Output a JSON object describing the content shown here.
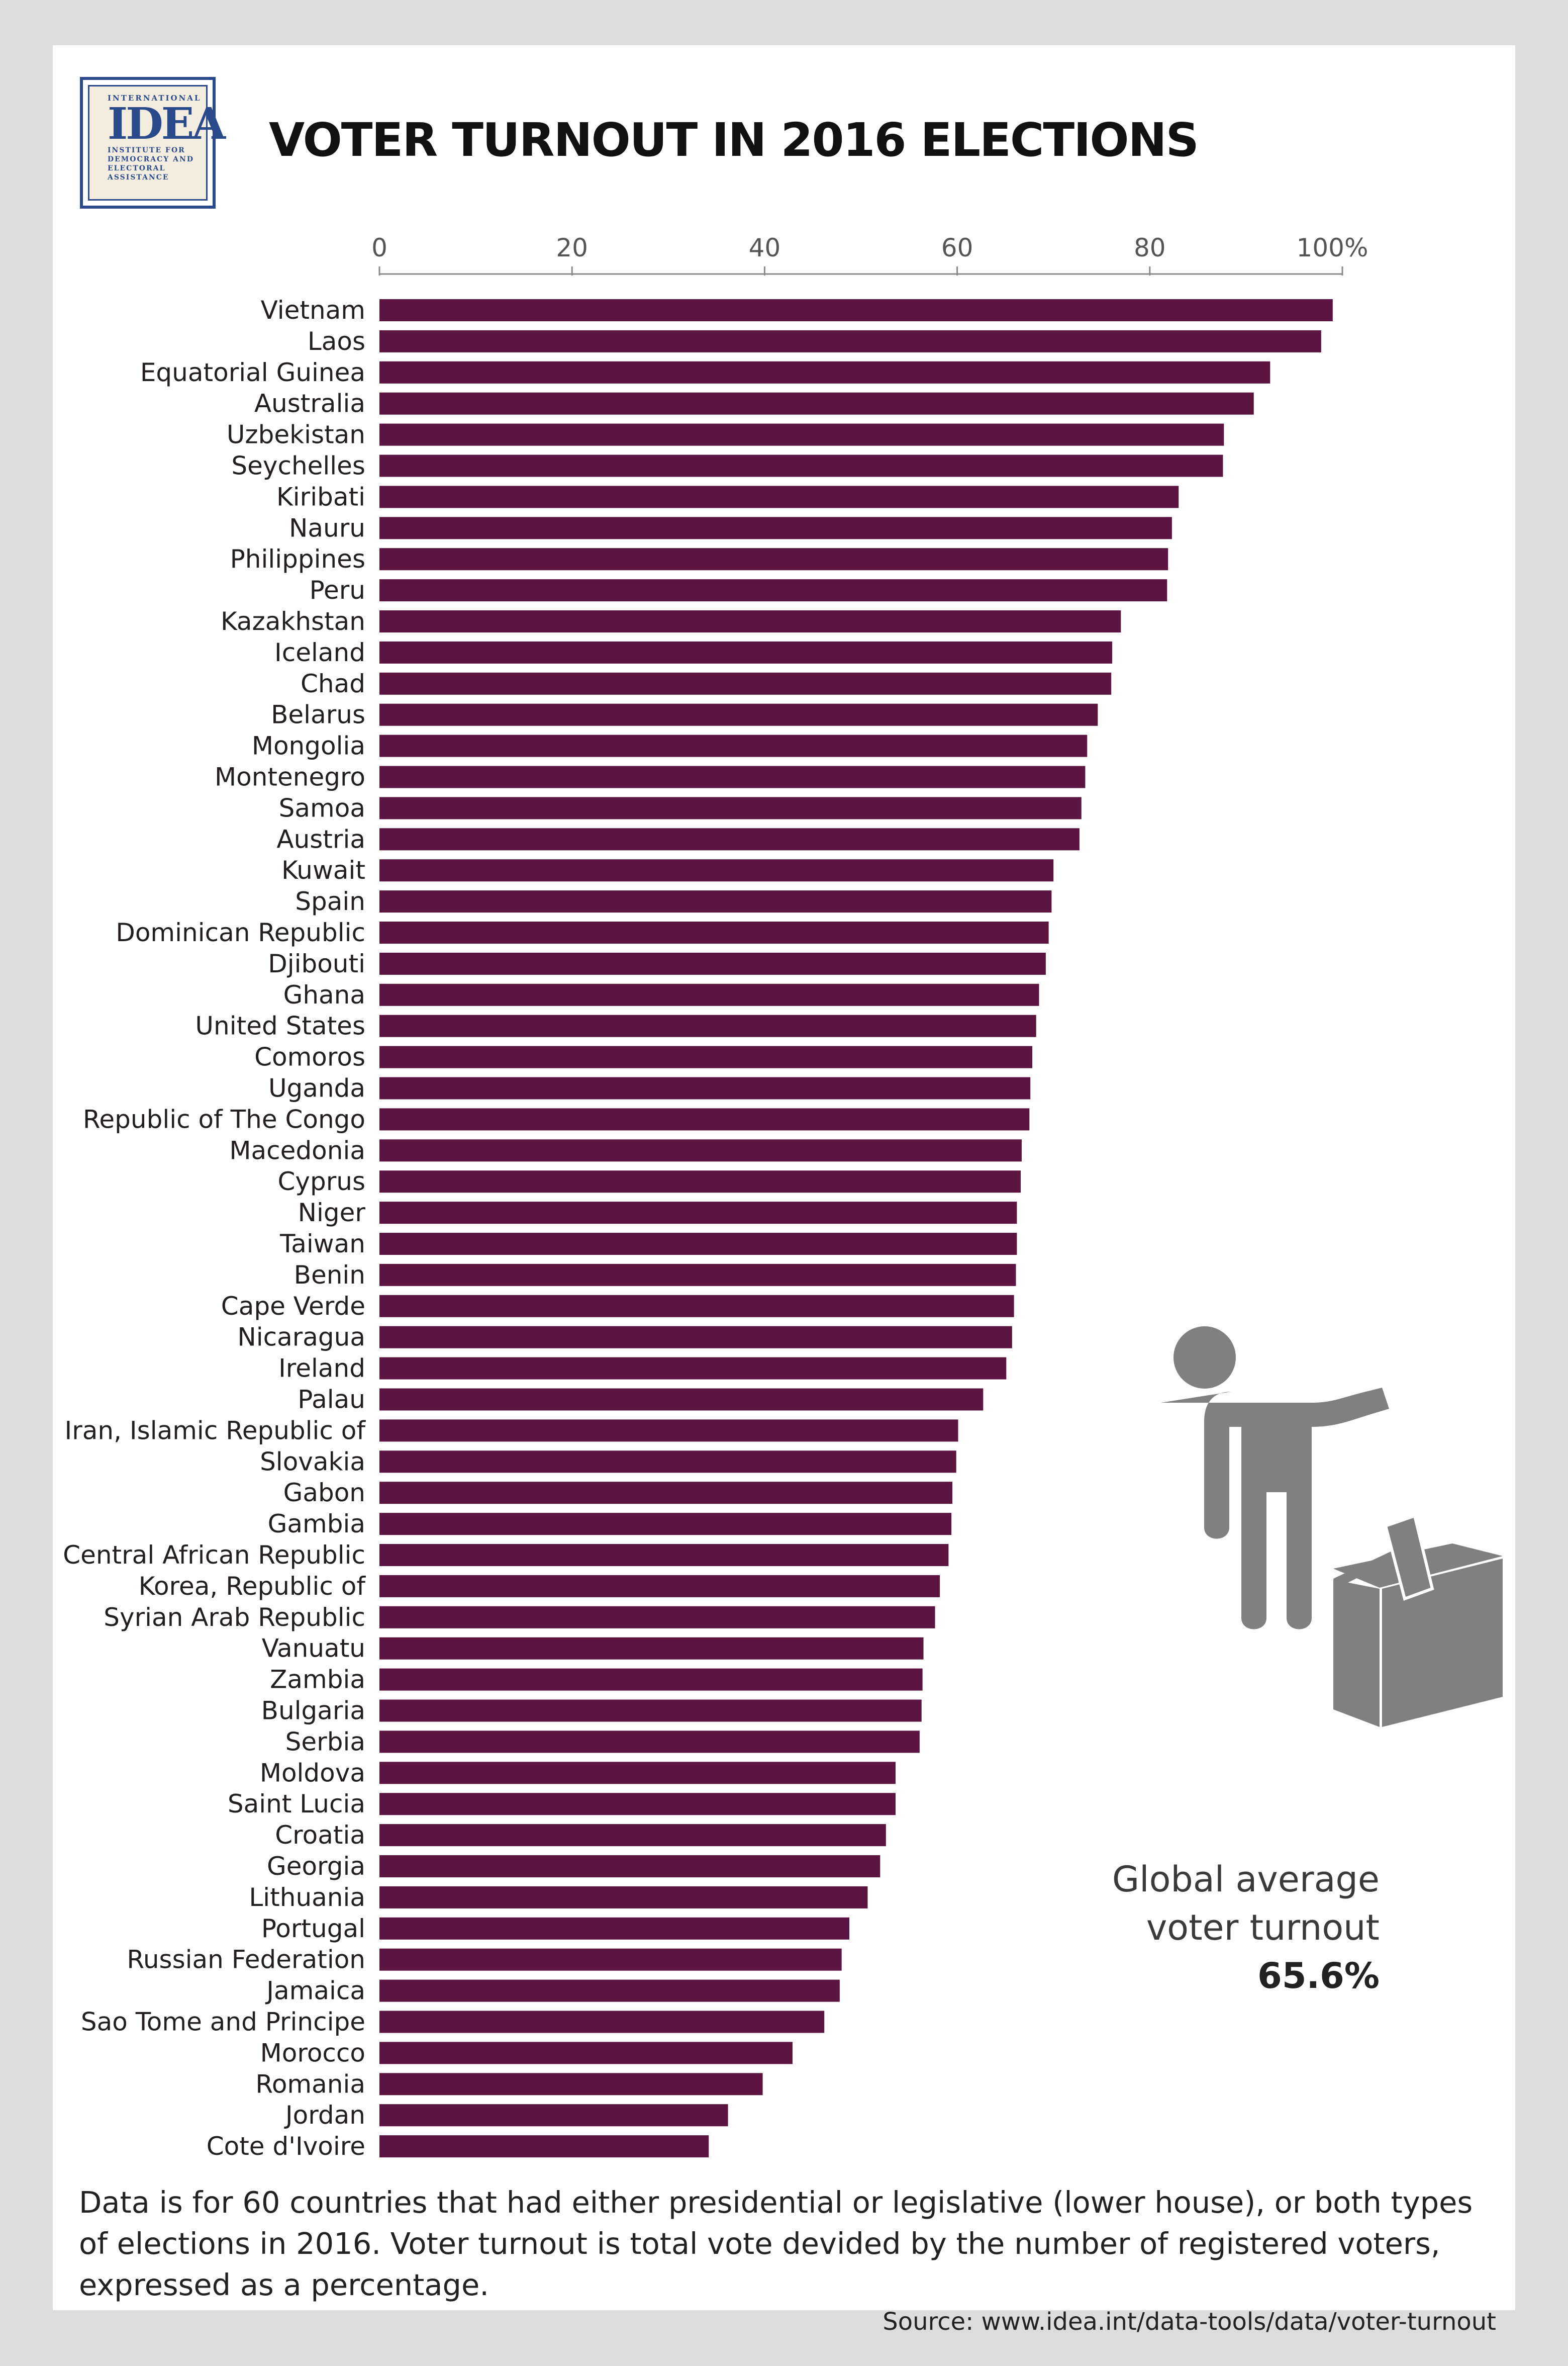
{
  "title": "VOTER TURNOUT IN 2016 ELECTIONS",
  "logo": {
    "top_text": "INTERNATIONAL",
    "mark": "IDEA",
    "sub_text": [
      "INSTITUTE FOR",
      "DEMOCRACY AND",
      "ELECTORAL",
      "ASSISTANCE"
    ]
  },
  "callout": {
    "line1": "Global average",
    "line2": "voter turnout",
    "value": "65.6%"
  },
  "footnote": "Data is for 60 countries that had either presidential or legislative (lower house), or both types of elections in 2016. Voter turnout is total vote devided by the number of registered voters, expressed as a percentage.",
  "source": "Source: www.idea.int/data-tools/data/voter-turnout",
  "colors": {
    "bar": "#5c1440",
    "axis": "#888888",
    "icon": "#808080"
  },
  "icon": "voter-ballot-box-icon",
  "chart_data": {
    "type": "bar",
    "orientation": "horizontal",
    "xlim": [
      0,
      100
    ],
    "ticks": [
      {
        "value": 0,
        "label": "0"
      },
      {
        "value": 20,
        "label": "20"
      },
      {
        "value": 40,
        "label": "40"
      },
      {
        "value": 60,
        "label": "60"
      },
      {
        "value": 80,
        "label": "80"
      },
      {
        "value": 100,
        "label": "100%"
      }
    ],
    "axis_position": "top",
    "grid": false,
    "categories": [
      "Vietnam",
      "Laos",
      "Equatorial Guinea",
      "Australia",
      "Uzbekistan",
      "Seychelles",
      "Kiribati",
      "Nauru",
      "Philippines",
      "Peru",
      "Kazakhstan",
      "Iceland",
      "Chad",
      "Belarus",
      "Mongolia",
      "Montenegro",
      "Samoa",
      "Austria",
      "Kuwait",
      "Spain",
      "Dominican Republic",
      "Djibouti",
      "Ghana",
      "United States",
      "Comoros",
      "Uganda",
      "Republic of The Congo",
      "Macedonia",
      "Cyprus",
      "Niger",
      "Taiwan",
      "Benin",
      "Cape Verde",
      "Nicaragua",
      "Ireland",
      "Palau",
      "Iran, Islamic Republic of",
      "Slovakia",
      "Gabon",
      "Gambia",
      "Central African Republic",
      "Korea, Republic of",
      "Syrian Arab Republic",
      "Vanuatu",
      "Zambia",
      "Bulgaria",
      "Serbia",
      "Moldova",
      "Saint Lucia",
      "Croatia",
      "Georgia",
      "Lithuania",
      "Portugal",
      "Russian Federation",
      "Jamaica",
      "Sao Tome and Principe",
      "Morocco",
      "Romania",
      "Jordan",
      "Cote d'Ivoire"
    ],
    "values": [
      99.0,
      97.8,
      92.5,
      90.8,
      87.7,
      87.6,
      83.0,
      82.3,
      81.9,
      81.8,
      77.0,
      76.1,
      76.0,
      74.6,
      73.5,
      73.3,
      72.9,
      72.7,
      70.0,
      69.8,
      69.5,
      69.2,
      68.5,
      68.2,
      67.8,
      67.6,
      67.5,
      66.7,
      66.6,
      66.2,
      66.2,
      66.1,
      65.9,
      65.7,
      65.1,
      62.7,
      60.1,
      59.9,
      59.5,
      59.4,
      59.1,
      58.2,
      57.7,
      56.5,
      56.4,
      56.3,
      56.1,
      53.6,
      53.6,
      52.6,
      52.0,
      50.7,
      48.8,
      48.0,
      47.8,
      46.2,
      42.9,
      39.8,
      36.2,
      34.2
    ]
  }
}
